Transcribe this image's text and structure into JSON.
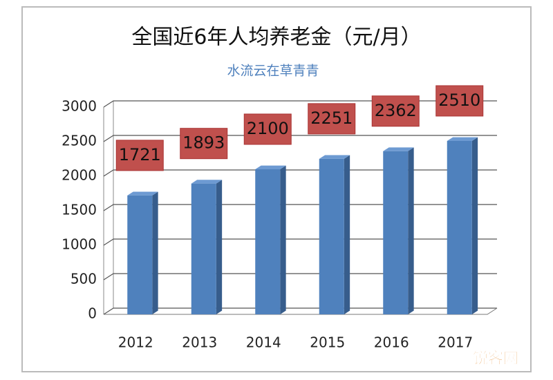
{
  "chart_data": {
    "type": "bar3d",
    "title": "全国近6年人均养老金（元/月）",
    "subtitle": "水流云在草青青",
    "categories": [
      "2012",
      "2013",
      "2014",
      "2015",
      "2016",
      "2017"
    ],
    "values": [
      1721,
      1893,
      2100,
      2251,
      2362,
      2510
    ],
    "color": "#4f81bd",
    "label_color": "#c0504d",
    "ylim": [
      0,
      3000
    ],
    "yticks": [
      0,
      500,
      1000,
      1500,
      2000,
      2500,
      3000
    ],
    "grid": true
  },
  "watermark": "锐客网"
}
